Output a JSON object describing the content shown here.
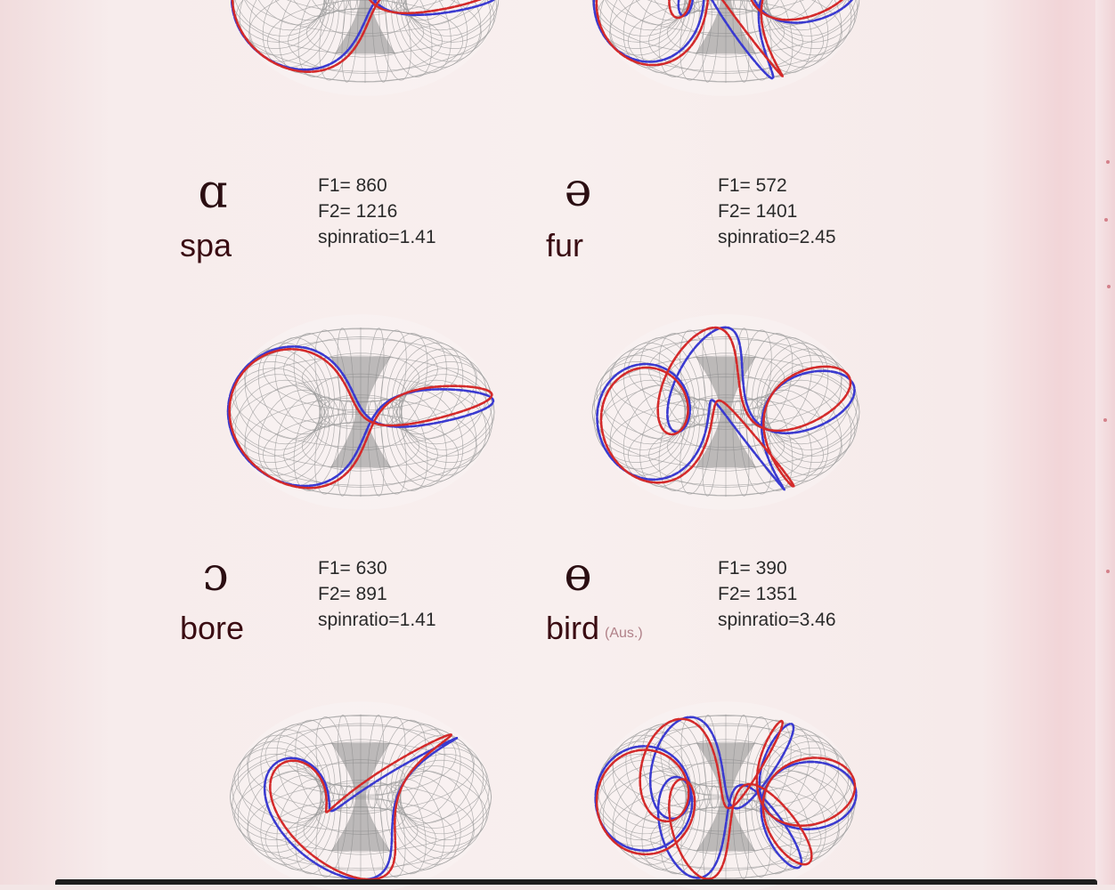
{
  "vowels": [
    {
      "symbol": "ɑ",
      "word": "spa",
      "note": "",
      "f1": "F1= 860",
      "f2": "F2= 1216",
      "spinratio": "spinratio=1.41"
    },
    {
      "symbol": "ə",
      "word": "fur",
      "note": "",
      "f1": "F1= 572",
      "f2": "F2= 1401",
      "spinratio": "spinratio=2.45"
    },
    {
      "symbol": "ɔ",
      "word": "bore",
      "note": "",
      "f1": "F1= 630",
      "f2": "F2= 891",
      "spinratio": "spinratio=1.41"
    },
    {
      "symbol": "ɵ",
      "word": "bird",
      "note": "(Aus.)",
      "f1": "F1= 390",
      "f2": "F2= 1351",
      "spinratio": "spinratio=3.46"
    }
  ],
  "colors": {
    "curve_a": "#d42a2a",
    "curve_b": "#3a3ad0",
    "wire": "#9a9a9a",
    "background": "#f6ecec"
  }
}
